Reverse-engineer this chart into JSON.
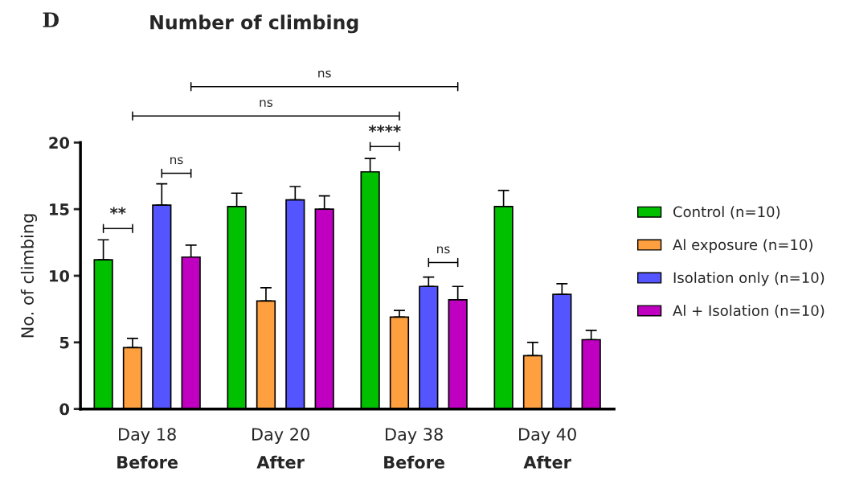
{
  "chart_data": {
    "type": "bar",
    "title": "Number of climbing",
    "ylabel": "No. of climbing",
    "categories": [
      "Day 18\nBefore",
      "Day 20\nAfter",
      "Day 38\nBefore",
      "Day 40\nAfter"
    ],
    "series": [
      {
        "name": "Control (n=10)",
        "color": "#00c000",
        "values": [
          11.2,
          15.2,
          17.8,
          15.2
        ],
        "errors": [
          [
            11.2,
            12.7
          ],
          [
            15.2,
            16.2
          ],
          [
            17.8,
            18.8
          ],
          [
            15.2,
            16.4
          ]
        ]
      },
      {
        "name": "Al exposure (n=10)",
        "color": "#ffa040",
        "values": [
          4.6,
          8.1,
          6.9,
          4.0
        ],
        "errors": [
          [
            4.6,
            5.3
          ],
          [
            8.1,
            9.1
          ],
          [
            6.9,
            7.4
          ],
          [
            4.0,
            5.0
          ]
        ]
      },
      {
        "name": "Isolation only (n=10)",
        "color": "#5555ff",
        "values": [
          15.3,
          15.7,
          9.2,
          8.6
        ],
        "errors": [
          [
            15.3,
            16.9
          ],
          [
            15.7,
            16.7
          ],
          [
            9.2,
            9.9
          ],
          [
            8.6,
            9.4
          ]
        ]
      },
      {
        "name": "Al + Isolation (n=10)",
        "color": "#c000c0",
        "values": [
          11.4,
          15.0,
          8.2,
          5.2
        ],
        "errors": [
          [
            11.4,
            12.3
          ],
          [
            15.0,
            16.0
          ],
          [
            8.2,
            9.2
          ],
          [
            5.2,
            5.9
          ]
        ]
      }
    ],
    "ylim": [
      0,
      20
    ],
    "yticks": [
      0,
      5,
      10,
      15,
      20
    ],
    "grid": false,
    "legend": "right",
    "annotations": [
      "D",
      "**",
      "ns",
      "****",
      "ns",
      "ns",
      "ns"
    ]
  }
}
